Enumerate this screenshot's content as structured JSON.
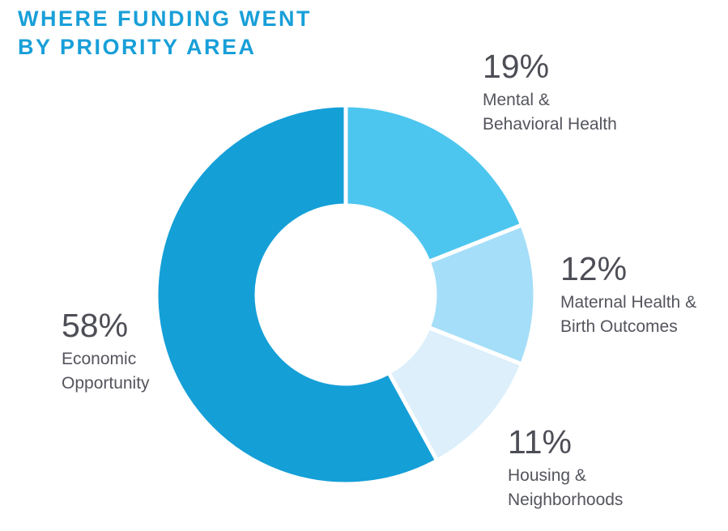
{
  "title": {
    "line1": "WHERE FUNDING WENT",
    "line2": "BY PRIORITY AREA",
    "color": "#189FD8"
  },
  "chart_data": {
    "type": "pie",
    "variant": "donut",
    "title": "WHERE FUNDING WENT BY PRIORITY AREA",
    "direction": "clockwise",
    "start_angle_deg": 0,
    "inner_radius_ratio": 0.47,
    "gap_color": "#ffffff",
    "slices": [
      {
        "id": "mental-behavioral-health",
        "label": "Mental & Behavioral Health",
        "name_lines": [
          "Mental &",
          "Behavioral Health"
        ],
        "value": 19,
        "display": "19%",
        "color": "#4DC6EF"
      },
      {
        "id": "maternal-health-birth-outcomes",
        "label": "Maternal Health & Birth Outcomes",
        "name_lines": [
          "Maternal Health &",
          "Birth Outcomes"
        ],
        "value": 12,
        "display": "12%",
        "color": "#A5DEF8"
      },
      {
        "id": "housing-neighborhoods",
        "label": "Housing & Neighborhoods",
        "name_lines": [
          "Housing &",
          "Neighborhoods"
        ],
        "value": 11,
        "display": "11%",
        "color": "#DCEFFA"
      },
      {
        "id": "economic-opportunity",
        "label": "Economic Opportunity",
        "name_lines": [
          "Economic",
          "Opportunity"
        ],
        "value": 58,
        "display": "58%",
        "color": "#149FD7"
      }
    ]
  }
}
